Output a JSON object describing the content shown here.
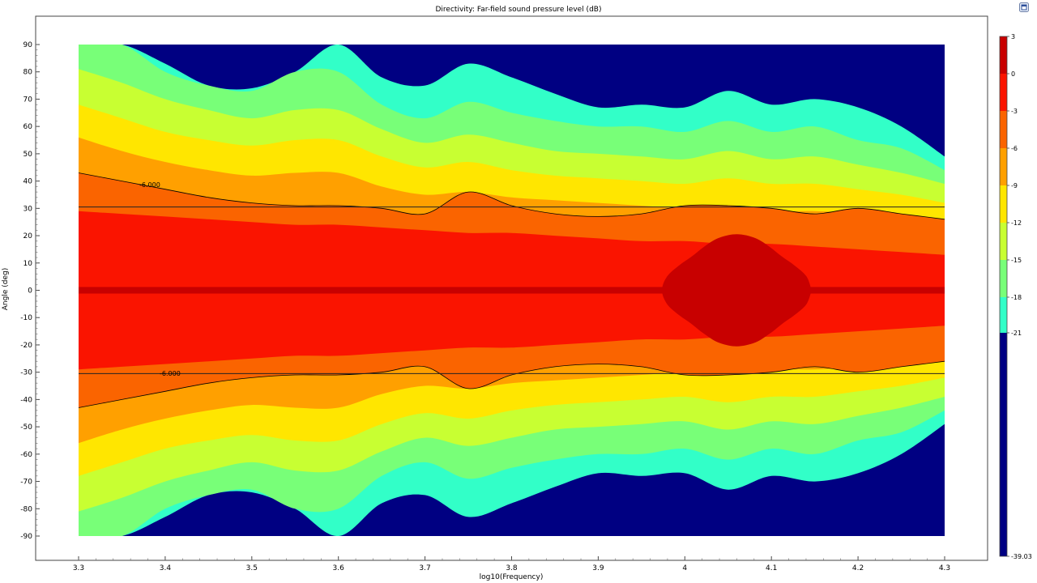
{
  "chart_data": {
    "type": "heatmap",
    "title": "Directivity: Far-field sound pressure level (dB)",
    "xlabel": "log10(Frequency)",
    "ylabel": "Angle (deg)",
    "xlim": [
      3.3,
      4.3
    ],
    "ylim": [
      -90,
      90
    ],
    "x_ticks": [
      "3.3",
      "3.4",
      "3.5",
      "3.6",
      "3.7",
      "3.8",
      "3.9",
      "4",
      "4.1",
      "4.2",
      "4.3"
    ],
    "y_ticks": [
      "90",
      "80",
      "70",
      "60",
      "50",
      "40",
      "30",
      "20",
      "10",
      "0",
      "-10",
      "-20",
      "-30",
      "-40",
      "-50",
      "-60",
      "-70",
      "-80",
      "-90"
    ],
    "colorbar": {
      "labels": [
        "3",
        "0",
        "-3",
        "-6",
        "-9",
        "-12",
        "-15",
        "-18",
        "-21",
        "-39.03"
      ],
      "levels": [
        3,
        0,
        -3,
        -6,
        -9,
        -12,
        -15,
        -18,
        -21,
        -39.03
      ],
      "colors": [
        "#c80000",
        "#fa1400",
        "#fa6400",
        "#ffa000",
        "#ffe600",
        "#c8ff32",
        "#78ff78",
        "#32ffc8",
        "#000082"
      ]
    },
    "contour_label": "-6.000",
    "reference_angles": [
      30.5,
      -30.5
    ],
    "contour_boundaries": {
      "x": [
        3.3,
        3.35,
        3.4,
        3.45,
        3.5,
        3.55,
        3.6,
        3.65,
        3.7,
        3.75,
        3.8,
        3.85,
        3.9,
        3.95,
        4.0,
        4.05,
        4.1,
        4.15,
        4.2,
        4.25,
        4.3
      ],
      "-21": [
        90,
        90,
        83,
        75,
        74,
        80,
        90,
        78,
        75,
        83,
        78,
        72,
        67,
        68,
        67,
        73,
        68,
        70,
        67,
        60,
        49
      ],
      "-18": [
        90,
        90,
        80,
        75,
        73,
        80,
        80,
        68,
        63,
        69,
        65,
        62,
        60,
        60,
        58,
        62,
        58,
        60,
        55,
        52,
        44
      ],
      "-15": [
        81,
        76,
        70,
        66,
        63,
        66,
        66,
        59,
        54,
        57,
        54,
        51,
        50,
        49,
        48,
        51,
        48,
        49,
        46,
        43,
        39
      ],
      "-12": [
        68,
        63,
        58,
        55,
        53,
        55,
        55,
        49,
        45,
        47,
        44,
        42,
        41,
        40,
        39,
        41,
        39,
        39,
        37,
        35,
        32
      ],
      "-9": [
        56,
        51,
        47,
        44,
        42,
        43,
        43,
        38,
        35,
        36,
        34,
        33,
        32,
        31,
        30,
        31,
        29,
        29,
        28,
        26,
        24
      ],
      "-6": [
        43,
        40,
        37,
        34,
        32,
        31,
        31,
        30,
        28,
        36,
        31,
        28,
        27,
        28,
        31,
        31,
        30,
        28,
        30,
        28,
        26
      ],
      "-3": [
        29,
        28,
        27,
        26,
        25,
        24,
        24,
        23,
        22,
        21,
        21,
        20,
        19,
        18,
        18,
        17,
        17,
        16,
        15,
        14,
        13
      ]
    },
    "high_region": {
      "range_x": [
        3.98,
        4.14
      ],
      "range_y": [
        -19,
        19
      ],
      "level": "0 to 3"
    }
  },
  "ui": {
    "corner_icon": "window-restore-icon"
  }
}
